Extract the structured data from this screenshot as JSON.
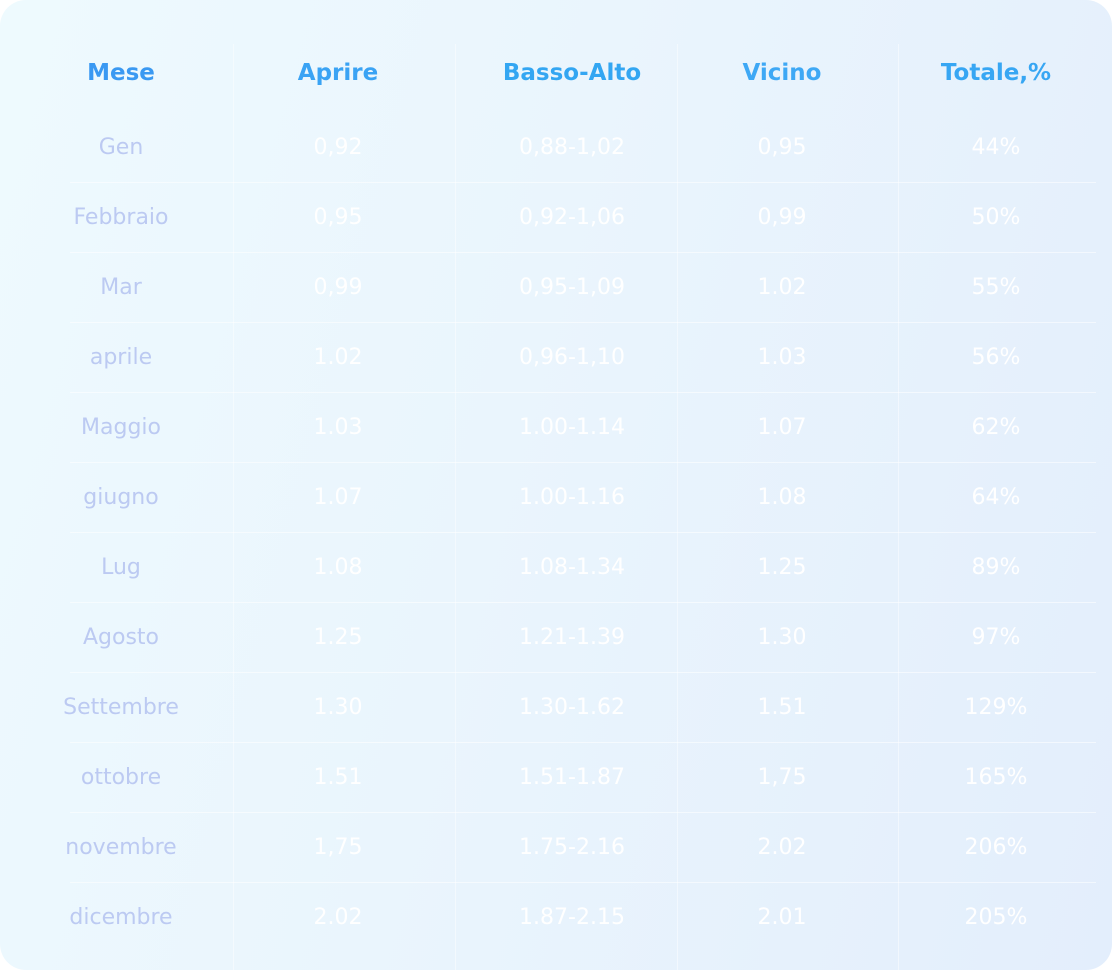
{
  "table": {
    "headers": [
      "Mese",
      "Aprire",
      "Basso-Alto",
      "Vicino",
      "Totale,%"
    ],
    "rows": [
      [
        "Gen",
        "0,92",
        "0,88-1,02",
        "0,95",
        "44%"
      ],
      [
        "Febbraio",
        "0,95",
        "0,92-1,06",
        "0,99",
        "50%"
      ],
      [
        "Mar",
        "0,99",
        "0,95-1,09",
        "1.02",
        "55%"
      ],
      [
        "aprile",
        "1.02",
        "0,96-1,10",
        "1.03",
        "56%"
      ],
      [
        "Maggio",
        "1.03",
        "1.00-1.14",
        "1.07",
        "62%"
      ],
      [
        "giugno",
        "1.07",
        "1.00-1.16",
        "1.08",
        "64%"
      ],
      [
        "Lug",
        "1.08",
        "1.08-1.34",
        "1.25",
        "89%"
      ],
      [
        "Agosto",
        "1.25",
        "1.21-1.39",
        "1.30",
        "97%"
      ],
      [
        "Settembre",
        "1.30",
        "1.30-1.62",
        "1.51",
        "129%"
      ],
      [
        "ottobre",
        "1.51",
        "1.51-1.87",
        "1,75",
        "165%"
      ],
      [
        "novembre",
        "1,75",
        "1.75-2.16",
        "2.02",
        "206%"
      ],
      [
        "dicembre",
        "2.02",
        "1.87-2.15",
        "2.01",
        "205%"
      ]
    ]
  },
  "colors": {
    "header_text": "#3a99f2",
    "month_text": "#bccaf2",
    "value_text": "#ffffff"
  }
}
